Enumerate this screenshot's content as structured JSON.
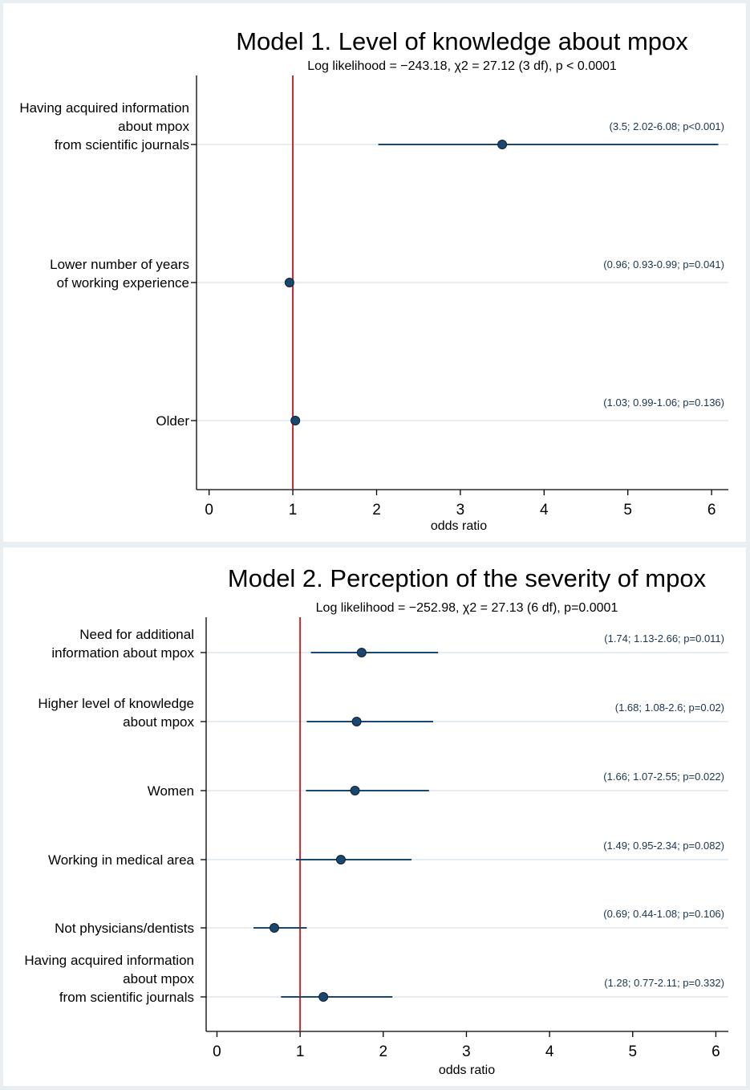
{
  "colors": {
    "background": "#e9eef2",
    "plot_bg": "#ffffff",
    "gridline": "#e6edf2",
    "marker": "#1a476f",
    "ci_line": "#1a476f",
    "reference_line": "#c1272d",
    "annotation_text": "#1a3550"
  },
  "chart_data": [
    {
      "type": "forest",
      "title": "Model 1. Level of knowledge about mpox",
      "subtitle": "Log likelihood = −243.18, χ2 = 27.12 (3 df), p < 0.0001",
      "xlabel": "odds ratio",
      "xlim": [
        -0.15,
        6.2
      ],
      "xticks": [
        0,
        1,
        2,
        3,
        4,
        5,
        6
      ],
      "reference_line": 1,
      "rows": [
        {
          "label_lines": [
            "Having acquired information",
            "about mpox",
            "from scientific journals"
          ],
          "or": 3.5,
          "ci_low": 2.02,
          "ci_high": 6.08,
          "annotation": "(3.5; 2.02-6.08; p<0.001)"
        },
        {
          "label_lines": [
            "Lower number of years",
            "of working experience"
          ],
          "or": 0.96,
          "ci_low": 0.93,
          "ci_high": 0.99,
          "annotation": "(0.96; 0.93-0.99; p=0.041)"
        },
        {
          "label_lines": [
            "Older"
          ],
          "or": 1.03,
          "ci_low": 0.99,
          "ci_high": 1.06,
          "annotation": "(1.03; 0.99-1.06; p=0.136)"
        }
      ]
    },
    {
      "type": "forest",
      "title": "Model 2. Perception of the severity of mpox",
      "subtitle": "Log likelihood = −252.98, χ2 = 27.13 (6 df), p=0.0001",
      "xlabel": "odds ratio",
      "xlim": [
        -0.13,
        6.15
      ],
      "xticks": [
        0,
        1,
        2,
        3,
        4,
        5,
        6
      ],
      "reference_line": 1,
      "rows": [
        {
          "label_lines": [
            "Need for additional",
            "information about mpox"
          ],
          "or": 1.74,
          "ci_low": 1.13,
          "ci_high": 2.66,
          "annotation": "(1.74; 1.13-2.66; p=0.011)"
        },
        {
          "label_lines": [
            "Higher level of knowledge",
            "about mpox"
          ],
          "or": 1.68,
          "ci_low": 1.08,
          "ci_high": 2.6,
          "annotation": "(1.68; 1.08-2.6; p=0.02)"
        },
        {
          "label_lines": [
            "Women"
          ],
          "or": 1.66,
          "ci_low": 1.07,
          "ci_high": 2.55,
          "annotation": "(1.66; 1.07-2.55; p=0.022)"
        },
        {
          "label_lines": [
            "Working in medical area"
          ],
          "or": 1.49,
          "ci_low": 0.95,
          "ci_high": 2.34,
          "annotation": "(1.49; 0.95-2.34; p=0.082)"
        },
        {
          "label_lines": [
            "Not physicians/dentists"
          ],
          "or": 0.69,
          "ci_low": 0.44,
          "ci_high": 1.08,
          "annotation": "(0.69; 0.44-1.08; p=0.106)"
        },
        {
          "label_lines": [
            "Having acquired information",
            "about mpox",
            "from scientific journals"
          ],
          "or": 1.28,
          "ci_low": 0.77,
          "ci_high": 2.11,
          "annotation": "(1.28; 0.77-2.11; p=0.332)"
        }
      ]
    }
  ]
}
